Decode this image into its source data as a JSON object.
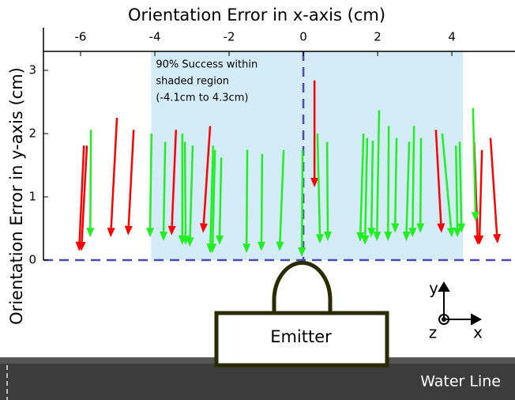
{
  "chart_data": {
    "type": "quiver",
    "xlabel": "Orientation Error in x-axis (cm)",
    "ylabel": "Orientation Error in y-axis (cm)",
    "xlim": [
      -7,
      5.7
    ],
    "ylim": [
      0,
      3.3
    ],
    "xticks": [
      -6,
      -4,
      -2,
      0,
      2,
      4
    ],
    "yticks": [
      0,
      1,
      2,
      3
    ],
    "shaded_range": [
      -4.1,
      4.3
    ],
    "shade_color": "#d3ecf7",
    "annotation": [
      "90% Success within",
      "shaded region",
      "(-4.1cm to 4.3cm)"
    ],
    "series": [
      {
        "color": "#ff0000",
        "arrows": [
          [
            -5.83,
            1.81,
            -5.98,
            0.14
          ],
          [
            -5.91,
            1.81,
            -6.04,
            0.14
          ],
          [
            -5.02,
            2.25,
            -5.19,
            0.36
          ],
          [
            -4.57,
            2.06,
            -4.72,
            0.39
          ],
          [
            -3.43,
            2.06,
            -3.55,
            0.39
          ],
          [
            -2.51,
            2.12,
            -2.7,
            0.43
          ],
          [
            0.3,
            2.84,
            0.3,
            1.15
          ],
          [
            3.57,
            2.06,
            3.72,
            0.43
          ],
          [
            4.6,
            1.87,
            4.7,
            0.24
          ],
          [
            4.81,
            1.74,
            4.74,
            0.24
          ],
          [
            5.04,
            1.93,
            5.23,
            0.26
          ]
        ]
      },
      {
        "color": "#22ee22",
        "arrows": [
          [
            -5.72,
            2.06,
            -5.74,
            0.36
          ],
          [
            -4.09,
            2.0,
            -4.13,
            0.36
          ],
          [
            -3.72,
            1.87,
            -3.77,
            0.3
          ],
          [
            -3.26,
            2.0,
            -3.26,
            0.24
          ],
          [
            -3.19,
            1.87,
            -3.17,
            0.24
          ],
          [
            -2.98,
            1.81,
            -3.06,
            0.21
          ],
          [
            -2.43,
            1.81,
            -2.51,
            0.11
          ],
          [
            -2.38,
            1.74,
            -2.45,
            0.11
          ],
          [
            -2.21,
            1.62,
            -2.26,
            0.24
          ],
          [
            -1.51,
            1.74,
            -1.53,
            0.11
          ],
          [
            -1.11,
            1.68,
            -1.13,
            0.14
          ],
          [
            -0.53,
            1.74,
            -0.64,
            0.14
          ],
          [
            -0.02,
            1.74,
            -0.04,
            0.05
          ],
          [
            0.38,
            2.0,
            0.45,
            0.26
          ],
          [
            0.64,
            1.87,
            0.66,
            0.3
          ],
          [
            1.62,
            2.0,
            1.53,
            0.29
          ],
          [
            1.72,
            1.93,
            1.66,
            0.24
          ],
          [
            1.87,
            1.89,
            1.83,
            0.36
          ],
          [
            2.04,
            2.37,
            1.98,
            0.3
          ],
          [
            2.3,
            2.12,
            2.28,
            0.3
          ],
          [
            2.51,
            1.93,
            2.47,
            0.43
          ],
          [
            2.85,
            1.87,
            2.77,
            0.3
          ],
          [
            2.98,
            2.12,
            2.94,
            0.36
          ],
          [
            3.17,
            1.93,
            3.15,
            0.43
          ],
          [
            3.74,
            2.0,
            4.0,
            0.36
          ],
          [
            4.11,
            1.81,
            4.15,
            0.36
          ],
          [
            4.21,
            1.87,
            4.26,
            0.43
          ],
          [
            4.57,
            2.4,
            4.64,
            0.61
          ]
        ]
      }
    ],
    "diagram": {
      "emitter": "Emitter",
      "water_line": "Water Line",
      "axis_x": "x",
      "axis_y": "y",
      "axis_z": "z"
    }
  }
}
